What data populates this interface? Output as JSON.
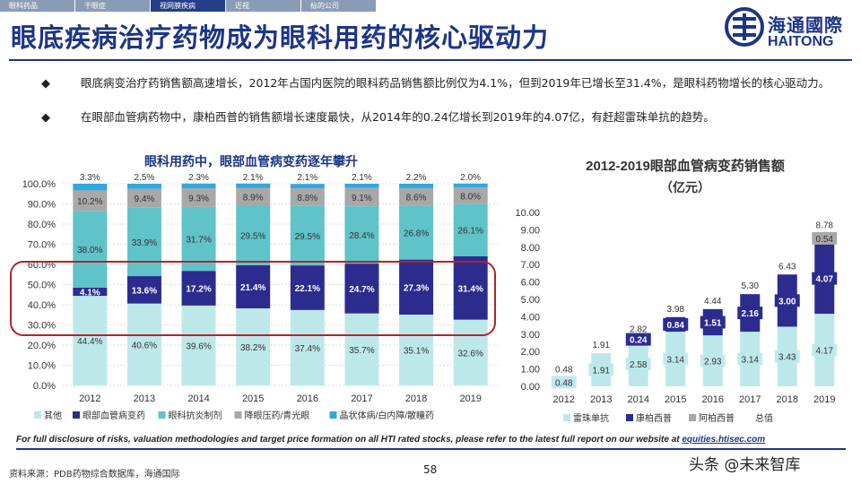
{
  "tabs": [
    {
      "label": "眼科药品",
      "active": false
    },
    {
      "label": "干眼症",
      "active": false
    },
    {
      "label": "视网膜疾病",
      "active": true
    },
    {
      "label": "近视",
      "active": false
    },
    {
      "label": "标的公司",
      "active": false
    }
  ],
  "title": "眼底疾病治疗药物成为眼科用药的核心驱动力",
  "logo": {
    "cn": "海通國際",
    "en": "HAITONG"
  },
  "bullets": [
    "眼底病变治疗药销售额高速增长，2012年占国内医院的眼科药品销售额比例仅为4.1%，但到2019年已增长至31.4%，是眼科药物增长的核心驱动力。",
    "在眼部血管病药物中，康柏西普的销售额增长速度最快，从2014年的0.24亿增长到2019年的4.07亿，有赶超雷珠单抗的趋势。"
  ],
  "bullet_symbol": "◆",
  "disclaimer": {
    "text": "For full disclosure of risks, valuation methodologies and target price formation on all HTI rated stocks, please refer to the latest full report on our website at ",
    "link": "equities.htisec.com"
  },
  "source": "资料来源：PDB药物综合数据库，海通国际",
  "page_number": "58",
  "watermark": "头条 @未来智库",
  "colors": {
    "brand": "#1d3585",
    "teal": "#5fc3c9",
    "light": "#bde8ea",
    "navy": "#2c2c8e",
    "gray": "#a8a8a8",
    "cyan": "#2fa8e0",
    "highlight": "#b0242a"
  },
  "chart_data": [
    {
      "type": "bar",
      "stacked": true,
      "title": "眼科用药中，眼部血管病变药逐年攀升",
      "categories": [
        "2012",
        "2013",
        "2014",
        "2015",
        "2016",
        "2017",
        "2018",
        "2019"
      ],
      "y_ticks": [
        "0.0%",
        "10.0%",
        "20.0%",
        "30.0%",
        "40.0%",
        "50.0%",
        "60.0%",
        "70.0%",
        "80.0%",
        "90.0%",
        "100.0%"
      ],
      "ylim": [
        0,
        100
      ],
      "series": [
        {
          "name": "其他",
          "color": "#bde8ea",
          "values": [
            44.4,
            40.6,
            39.6,
            38.2,
            37.4,
            35.7,
            35.1,
            32.6
          ],
          "labels": [
            "44.4%",
            "40.6%",
            "39.6%",
            "38.2%",
            "37.4%",
            "35.7%",
            "35.1%",
            "32.6%"
          ]
        },
        {
          "name": "眼部血管病变药",
          "color": "#2c2c8e",
          "values": [
            4.1,
            13.6,
            17.2,
            21.4,
            22.1,
            24.7,
            27.3,
            31.4
          ],
          "labels": [
            "4.1%",
            "13.6%",
            "17.2%",
            "21.4%",
            "22.1%",
            "24.7%",
            "27.3%",
            "31.4%"
          ]
        },
        {
          "name": "眼科抗炎制剂",
          "color": "#5fc3c9",
          "values": [
            38.0,
            33.9,
            31.7,
            29.5,
            29.5,
            28.4,
            26.8,
            26.1
          ],
          "labels": [
            "38.0%",
            "33.9%",
            "31.7%",
            "29.5%",
            "29.5%",
            "28.4%",
            "26.8%",
            "26.1%"
          ]
        },
        {
          "name": "降眼压药/青光眼",
          "color": "#a8a8a8",
          "values": [
            10.2,
            9.4,
            9.3,
            8.9,
            8.8,
            9.1,
            8.6,
            8.0
          ],
          "labels": [
            "10.2%",
            "9.4%",
            "9.3%",
            "8.9%",
            "8.8%",
            "9.1%",
            "8.6%",
            "8.0%"
          ]
        },
        {
          "name": "晶状体病/白内障/散瞳药",
          "color": "#2fa8e0",
          "values": [
            3.3,
            2.5,
            2.3,
            2.1,
            2.1,
            2.1,
            2.2,
            2.0
          ],
          "labels": [
            "3.3%",
            "2.5%",
            "2.3%",
            "2.1%",
            "2.1%",
            "2.1%",
            "2.2%",
            "2.0%"
          ]
        }
      ],
      "legend": "bottom"
    },
    {
      "type": "bar",
      "stacked": true,
      "title": "2012-2019眼部血管病变药销售额",
      "subtitle": "（亿元）",
      "categories": [
        "2012",
        "2013",
        "2014",
        "2015",
        "2016",
        "2017",
        "2018",
        "2019"
      ],
      "y_ticks": [
        "0.00",
        "1.00",
        "2.00",
        "3.00",
        "4.00",
        "5.00",
        "6.00",
        "7.00",
        "8.00",
        "9.00",
        "10.00"
      ],
      "ylim": [
        0,
        10
      ],
      "series": [
        {
          "name": "雷珠单抗",
          "color": "#bde8ea",
          "values": [
            0.48,
            1.91,
            2.58,
            3.14,
            2.93,
            3.14,
            3.43,
            4.17
          ],
          "labels": [
            "0.48",
            "1.91",
            "2.58",
            "3.14",
            "2.93",
            "3.14",
            "3.43",
            "4.17"
          ]
        },
        {
          "name": "康柏西普",
          "color": "#2c2c8e",
          "values": [
            0,
            0,
            0.24,
            0.84,
            1.51,
            2.16,
            3.0,
            4.07
          ],
          "labels": [
            "",
            "",
            "0.24",
            "0.84",
            "1.51",
            "2.16",
            "3.00",
            "4.07"
          ]
        },
        {
          "name": "阿柏西普",
          "color": "#a8a8a8",
          "values": [
            0,
            0,
            0,
            0,
            0,
            0,
            0,
            0.54
          ],
          "labels": [
            "",
            "",
            "",
            "",
            "",
            "",
            "",
            "0.54"
          ]
        }
      ],
      "totals_name": "总值",
      "totals": [
        "0.48",
        "1.91",
        "2.82",
        "3.98",
        "4.44",
        "5.30",
        "6.43",
        "8.78"
      ],
      "legend": "bottom"
    }
  ]
}
